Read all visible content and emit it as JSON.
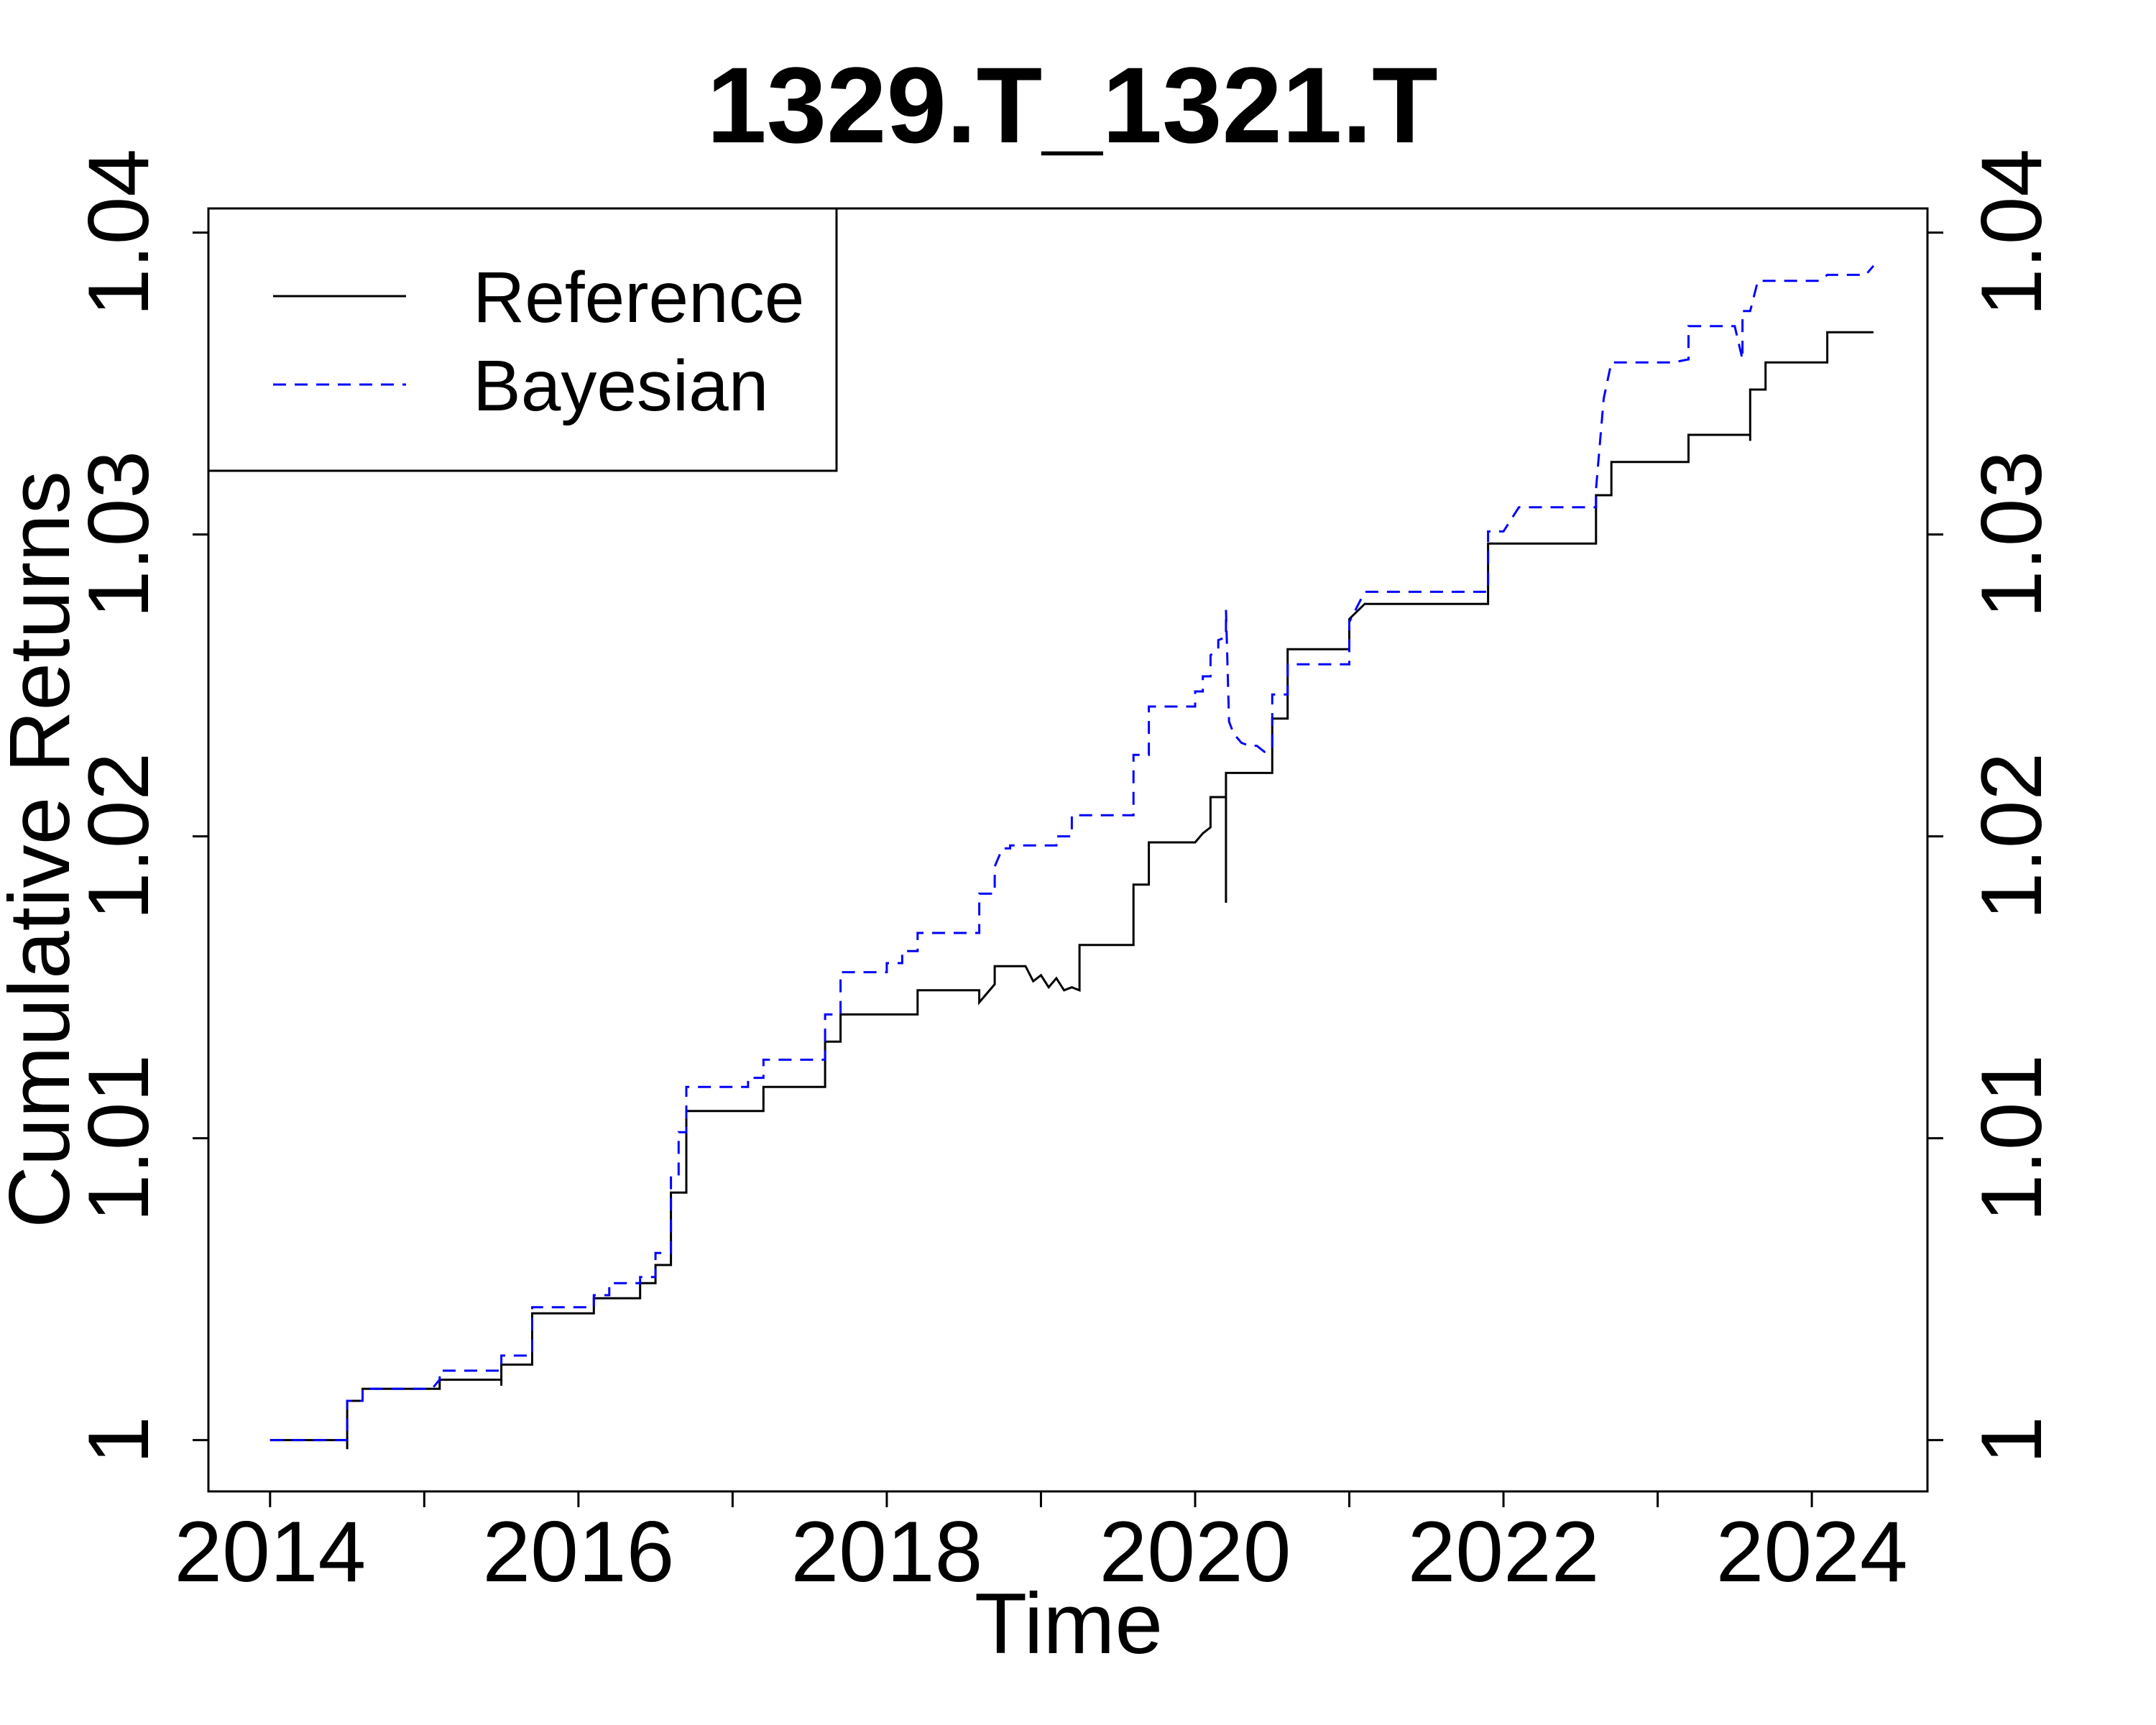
{
  "chart_data": {
    "type": "line",
    "title": "1329.T_1321.T",
    "xlabel": "Time",
    "ylabel": "Cumulative Returns",
    "xlim": [
      2013.6,
      2024.75
    ],
    "ylim": [
      0.9983,
      1.0408
    ],
    "x_ticks": [
      2014,
      2015,
      2016,
      2017,
      2018,
      2019,
      2020,
      2021,
      2022,
      2023,
      2024
    ],
    "x_tick_labels": [
      "2014",
      "2016",
      "2018",
      "2020",
      "2022",
      "2024"
    ],
    "x_tick_label_values": [
      2014,
      2016,
      2018,
      2020,
      2022,
      2024
    ],
    "y_ticks": [
      1.0,
      1.01,
      1.02,
      1.03,
      1.04
    ],
    "y_tick_labels": [
      "1",
      "1.01",
      "1.02",
      "1.03",
      "1.04"
    ],
    "grid": false,
    "legend_position": "top-left",
    "series": [
      {
        "name": "Reference",
        "color": "#000000",
        "dash": "solid",
        "points": [
          [
            2014.0,
            1.0
          ],
          [
            2014.5,
            1.0
          ],
          [
            2014.5,
            0.9997
          ],
          [
            2014.5,
            1.0013
          ],
          [
            2014.6,
            1.0013
          ],
          [
            2014.6,
            1.0017
          ],
          [
            2015.1,
            1.0017
          ],
          [
            2015.1,
            1.002
          ],
          [
            2015.5,
            1.002
          ],
          [
            2015.5,
            1.0018
          ],
          [
            2015.5,
            1.0025
          ],
          [
            2015.7,
            1.0025
          ],
          [
            2015.7,
            1.0042
          ],
          [
            2016.1,
            1.0042
          ],
          [
            2016.1,
            1.0047
          ],
          [
            2016.4,
            1.0047
          ],
          [
            2016.4,
            1.0052
          ],
          [
            2016.5,
            1.0052
          ],
          [
            2016.5,
            1.0058
          ],
          [
            2016.6,
            1.0058
          ],
          [
            2016.6,
            1.0072
          ],
          [
            2016.6,
            1.0082
          ],
          [
            2016.7,
            1.0082
          ],
          [
            2016.7,
            1.0098
          ],
          [
            2016.7,
            1.0109
          ],
          [
            2017.2,
            1.0109
          ],
          [
            2017.2,
            1.0117
          ],
          [
            2017.6,
            1.0117
          ],
          [
            2017.6,
            1.0132
          ],
          [
            2017.7,
            1.0132
          ],
          [
            2017.7,
            1.0141
          ],
          [
            2018.2,
            1.0141
          ],
          [
            2018.2,
            1.0149
          ],
          [
            2018.6,
            1.0149
          ],
          [
            2018.6,
            1.0145
          ],
          [
            2018.7,
            1.0151
          ],
          [
            2018.7,
            1.0157
          ],
          [
            2018.9,
            1.0157
          ],
          [
            2018.95,
            1.0152
          ],
          [
            2019.0,
            1.0154
          ],
          [
            2019.05,
            1.015
          ],
          [
            2019.1,
            1.0153
          ],
          [
            2019.15,
            1.0149
          ],
          [
            2019.2,
            1.015
          ],
          [
            2019.25,
            1.0149
          ],
          [
            2019.25,
            1.0164
          ],
          [
            2019.6,
            1.0164
          ],
          [
            2019.6,
            1.0184
          ],
          [
            2019.7,
            1.0184
          ],
          [
            2019.7,
            1.0198
          ],
          [
            2020.0,
            1.0198
          ],
          [
            2020.05,
            1.0201
          ],
          [
            2020.1,
            1.0203
          ],
          [
            2020.1,
            1.0213
          ],
          [
            2020.2,
            1.0213
          ],
          [
            2020.2,
            1.0178
          ],
          [
            2020.2,
            1.0221
          ],
          [
            2020.5,
            1.0221
          ],
          [
            2020.5,
            1.0239
          ],
          [
            2020.6,
            1.0239
          ],
          [
            2020.6,
            1.0262
          ],
          [
            2021.0,
            1.0262
          ],
          [
            2021.0,
            1.0272
          ],
          [
            2021.1,
            1.0277
          ],
          [
            2021.9,
            1.0277
          ],
          [
            2021.9,
            1.0297
          ],
          [
            2022.6,
            1.0297
          ],
          [
            2022.6,
            1.0313
          ],
          [
            2022.7,
            1.0313
          ],
          [
            2022.7,
            1.0324
          ],
          [
            2023.2,
            1.0324
          ],
          [
            2023.2,
            1.0333
          ],
          [
            2023.6,
            1.0333
          ],
          [
            2023.6,
            1.0331
          ],
          [
            2023.6,
            1.0348
          ],
          [
            2023.7,
            1.0348
          ],
          [
            2023.7,
            1.0357
          ],
          [
            2024.1,
            1.0357
          ],
          [
            2024.1,
            1.0367
          ],
          [
            2024.4,
            1.0367
          ]
        ]
      },
      {
        "name": "Bayesian",
        "color": "#0000ff",
        "dash": "dashed",
        "points": [
          [
            2014.0,
            1.0
          ],
          [
            2014.5,
            1.0
          ],
          [
            2014.5,
            1.0013
          ],
          [
            2014.6,
            1.0013
          ],
          [
            2014.6,
            1.0017
          ],
          [
            2015.05,
            1.0017
          ],
          [
            2015.1,
            1.002
          ],
          [
            2015.1,
            1.0023
          ],
          [
            2015.5,
            1.0023
          ],
          [
            2015.5,
            1.0028
          ],
          [
            2015.7,
            1.0028
          ],
          [
            2015.7,
            1.0044
          ],
          [
            2016.1,
            1.0044
          ],
          [
            2016.1,
            1.0048
          ],
          [
            2016.2,
            1.0048
          ],
          [
            2016.2,
            1.0052
          ],
          [
            2016.4,
            1.0052
          ],
          [
            2016.4,
            1.0054
          ],
          [
            2016.5,
            1.0054
          ],
          [
            2016.5,
            1.0062
          ],
          [
            2016.6,
            1.0062
          ],
          [
            2016.6,
            1.0074
          ],
          [
            2016.6,
            1.0087
          ],
          [
            2016.65,
            1.0087
          ],
          [
            2016.65,
            1.0102
          ],
          [
            2016.7,
            1.0102
          ],
          [
            2016.7,
            1.0117
          ],
          [
            2017.1,
            1.0117
          ],
          [
            2017.1,
            1.012
          ],
          [
            2017.2,
            1.012
          ],
          [
            2017.2,
            1.0126
          ],
          [
            2017.6,
            1.0126
          ],
          [
            2017.6,
            1.0134
          ],
          [
            2017.6,
            1.0141
          ],
          [
            2017.7,
            1.0141
          ],
          [
            2017.7,
            1.0155
          ],
          [
            2018.0,
            1.0155
          ],
          [
            2018.0,
            1.0158
          ],
          [
            2018.1,
            1.0158
          ],
          [
            2018.1,
            1.0162
          ],
          [
            2018.2,
            1.0162
          ],
          [
            2018.2,
            1.0168
          ],
          [
            2018.6,
            1.0168
          ],
          [
            2018.6,
            1.0181
          ],
          [
            2018.7,
            1.0181
          ],
          [
            2018.7,
            1.019
          ],
          [
            2018.75,
            1.0196
          ],
          [
            2018.8,
            1.0196
          ],
          [
            2018.8,
            1.0197
          ],
          [
            2019.1,
            1.0197
          ],
          [
            2019.1,
            1.02
          ],
          [
            2019.2,
            1.02
          ],
          [
            2019.2,
            1.0207
          ],
          [
            2019.6,
            1.0207
          ],
          [
            2019.6,
            1.0227
          ],
          [
            2019.7,
            1.0227
          ],
          [
            2019.7,
            1.0243
          ],
          [
            2020.0,
            1.0243
          ],
          [
            2020.0,
            1.0248
          ],
          [
            2020.05,
            1.0248
          ],
          [
            2020.05,
            1.0253
          ],
          [
            2020.1,
            1.0253
          ],
          [
            2020.1,
            1.026
          ],
          [
            2020.15,
            1.0262
          ],
          [
            2020.15,
            1.0265
          ],
          [
            2020.2,
            1.0266
          ],
          [
            2020.2,
            1.0275
          ],
          [
            2020.22,
            1.0238
          ],
          [
            2020.25,
            1.0234
          ],
          [
            2020.3,
            1.0231
          ],
          [
            2020.35,
            1.023
          ],
          [
            2020.4,
            1.023
          ],
          [
            2020.45,
            1.0228
          ],
          [
            2020.5,
            1.0229
          ],
          [
            2020.5,
            1.0247
          ],
          [
            2020.6,
            1.0247
          ],
          [
            2020.6,
            1.0257
          ],
          [
            2021.0,
            1.0257
          ],
          [
            2021.0,
            1.0271
          ],
          [
            2021.1,
            1.0281
          ],
          [
            2021.9,
            1.0281
          ],
          [
            2021.9,
            1.0301
          ],
          [
            2022.0,
            1.0301
          ],
          [
            2022.1,
            1.0309
          ],
          [
            2022.6,
            1.0309
          ],
          [
            2022.6,
            1.0315
          ],
          [
            2022.65,
            1.0345
          ],
          [
            2022.7,
            1.0357
          ],
          [
            2023.1,
            1.0357
          ],
          [
            2023.2,
            1.0358
          ],
          [
            2023.2,
            1.0369
          ],
          [
            2023.5,
            1.0369
          ],
          [
            2023.55,
            1.0358
          ],
          [
            2023.55,
            1.0374
          ],
          [
            2023.6,
            1.0374
          ],
          [
            2023.65,
            1.0384
          ],
          [
            2024.05,
            1.0384
          ],
          [
            2024.1,
            1.0386
          ],
          [
            2024.35,
            1.0386
          ],
          [
            2024.4,
            1.0389
          ]
        ]
      }
    ]
  }
}
